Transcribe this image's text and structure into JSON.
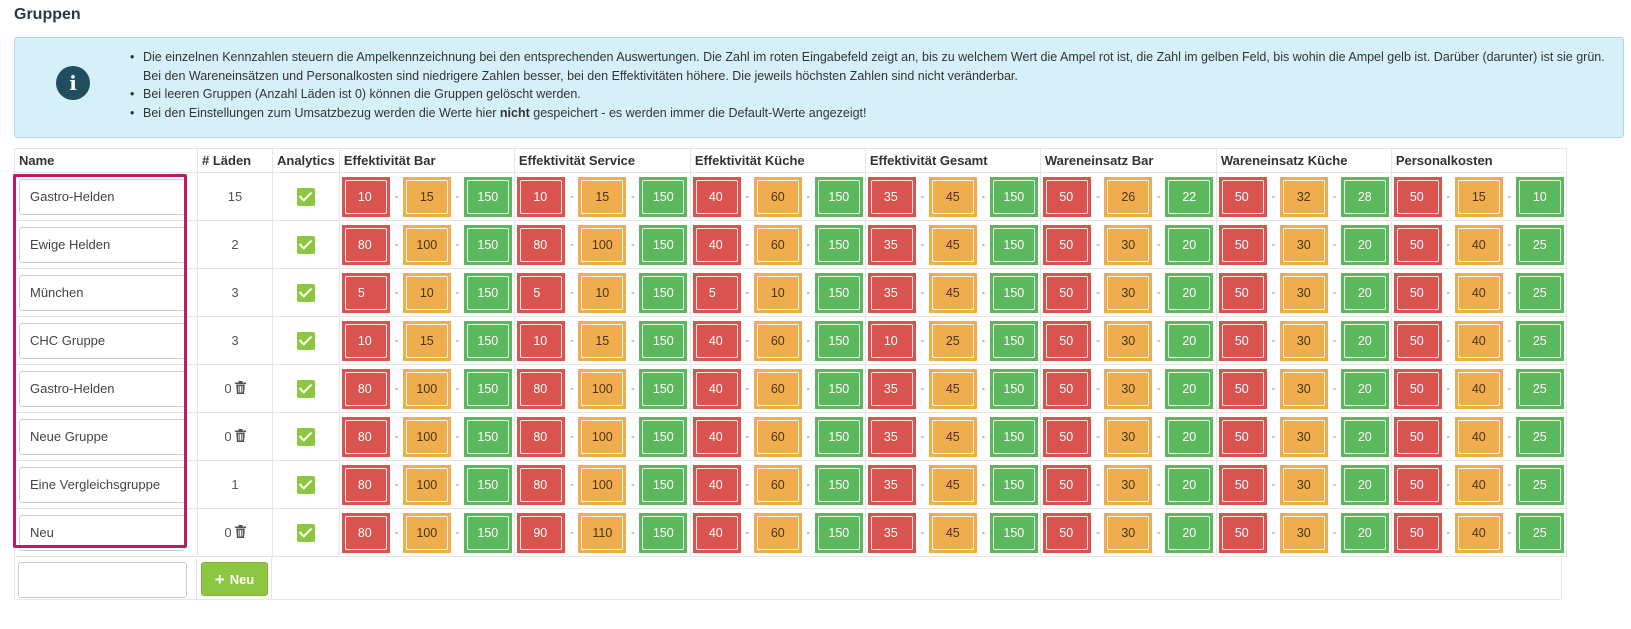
{
  "page": {
    "title": "Gruppen"
  },
  "info": {
    "icon": "info-icon",
    "bullet1": "Die einzelnen Kennzahlen steuern die Ampelkennzeichnung bei den entsprechenden Auswertungen. Die Zahl im roten Eingabefeld zeigt an, bis zu welchem Wert die Ampel rot ist, die Zahl im gelben Feld, bis wohin die Ampel gelb ist. Darüber (darunter) ist sie grün. Bei den Wareneinsätzen und Personalkosten sind niedrigere Zahlen besser, bei den Effektivitäten höhere. Die jeweils höchsten Zahlen sind nicht veränderbar.",
    "bullet2": "Bei leeren Gruppen (Anzahl Läden ist 0) können die Gruppen gelöscht werden.",
    "bullet3_pre": "Bei den Einstellungen zum Umsatzbezug werden die Werte hier ",
    "bullet3_bold": "nicht",
    "bullet3_post": " gespeichert - es werden immer die Default-Werte angezeigt!"
  },
  "table": {
    "headers": {
      "name": "Name",
      "count": "# Läden",
      "analytics": "Analytics",
      "metrics": [
        "Effektivität Bar",
        "Effektivität Service",
        "Effektivität Küche",
        "Effektivität Gesamt",
        "Wareneinsatz Bar",
        "Wareneinsatz Küche",
        "Personalkosten"
      ]
    },
    "rows": [
      {
        "name": "Gastro-Helden",
        "count": "15",
        "deletable": false,
        "analytics": true,
        "metrics": [
          [
            "10",
            "15",
            "150"
          ],
          [
            "10",
            "15",
            "150"
          ],
          [
            "40",
            "60",
            "150"
          ],
          [
            "35",
            "45",
            "150"
          ],
          [
            "50",
            "26",
            "22"
          ],
          [
            "50",
            "32",
            "28"
          ],
          [
            "50",
            "15",
            "10"
          ]
        ]
      },
      {
        "name": "Ewige Helden",
        "count": "2",
        "deletable": false,
        "analytics": true,
        "metrics": [
          [
            "80",
            "100",
            "150"
          ],
          [
            "80",
            "100",
            "150"
          ],
          [
            "40",
            "60",
            "150"
          ],
          [
            "35",
            "45",
            "150"
          ],
          [
            "50",
            "30",
            "20"
          ],
          [
            "50",
            "30",
            "20"
          ],
          [
            "50",
            "40",
            "25"
          ]
        ]
      },
      {
        "name": "München",
        "count": "3",
        "deletable": false,
        "analytics": true,
        "metrics": [
          [
            "5",
            "10",
            "150"
          ],
          [
            "5",
            "10",
            "150"
          ],
          [
            "5",
            "10",
            "150"
          ],
          [
            "35",
            "45",
            "150"
          ],
          [
            "50",
            "30",
            "20"
          ],
          [
            "50",
            "30",
            "20"
          ],
          [
            "50",
            "40",
            "25"
          ]
        ]
      },
      {
        "name": "CHC Gruppe",
        "count": "3",
        "deletable": false,
        "analytics": true,
        "metrics": [
          [
            "10",
            "15",
            "150"
          ],
          [
            "10",
            "15",
            "150"
          ],
          [
            "40",
            "60",
            "150"
          ],
          [
            "10",
            "25",
            "150"
          ],
          [
            "50",
            "30",
            "20"
          ],
          [
            "50",
            "30",
            "20"
          ],
          [
            "50",
            "40",
            "25"
          ]
        ]
      },
      {
        "name": "Gastro-Helden",
        "count": "0",
        "deletable": true,
        "analytics": true,
        "metrics": [
          [
            "80",
            "100",
            "150"
          ],
          [
            "80",
            "100",
            "150"
          ],
          [
            "40",
            "60",
            "150"
          ],
          [
            "35",
            "45",
            "150"
          ],
          [
            "50",
            "30",
            "20"
          ],
          [
            "50",
            "30",
            "20"
          ],
          [
            "50",
            "40",
            "25"
          ]
        ]
      },
      {
        "name": "Neue Gruppe",
        "count": "0",
        "deletable": true,
        "analytics": true,
        "metrics": [
          [
            "80",
            "100",
            "150"
          ],
          [
            "80",
            "100",
            "150"
          ],
          [
            "40",
            "60",
            "150"
          ],
          [
            "35",
            "45",
            "150"
          ],
          [
            "50",
            "30",
            "20"
          ],
          [
            "50",
            "30",
            "20"
          ],
          [
            "50",
            "40",
            "25"
          ]
        ]
      },
      {
        "name": "Eine Vergleichsgruppe",
        "count": "1",
        "deletable": false,
        "analytics": true,
        "metrics": [
          [
            "80",
            "100",
            "150"
          ],
          [
            "80",
            "100",
            "150"
          ],
          [
            "40",
            "60",
            "150"
          ],
          [
            "35",
            "45",
            "150"
          ],
          [
            "50",
            "30",
            "20"
          ],
          [
            "50",
            "30",
            "20"
          ],
          [
            "50",
            "40",
            "25"
          ]
        ]
      },
      {
        "name": "Neu",
        "count": "0",
        "deletable": true,
        "analytics": true,
        "metrics": [
          [
            "80",
            "100",
            "150"
          ],
          [
            "90",
            "110",
            "150"
          ],
          [
            "40",
            "60",
            "150"
          ],
          [
            "35",
            "45",
            "150"
          ],
          [
            "50",
            "30",
            "20"
          ],
          [
            "50",
            "30",
            "20"
          ],
          [
            "50",
            "40",
            "25"
          ]
        ]
      }
    ]
  },
  "new_group": {
    "input_value": "",
    "button_label": "Neu",
    "button_icon": "plus-icon"
  },
  "colors": {
    "red": "#d9534f",
    "yellow": "#f0ad4e",
    "green": "#5cb85c",
    "checkbox": "#8dc641",
    "highlight": "#c2186b",
    "info_bg": "#d6f0fa"
  }
}
